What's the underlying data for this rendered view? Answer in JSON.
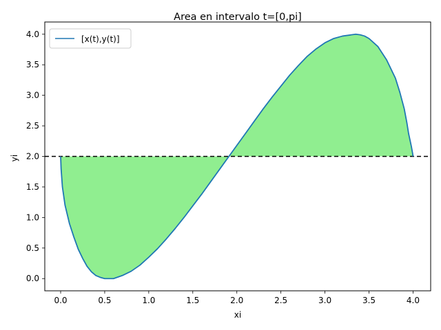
{
  "chart_data": {
    "type": "area",
    "title": "Area en intervalo t=[0,pi]",
    "xlabel": "xi",
    "ylabel": "yi",
    "xlim": [
      -0.18,
      4.2
    ],
    "ylim": [
      -0.2,
      4.2
    ],
    "xticks": [
      0.0,
      0.5,
      1.0,
      1.5,
      2.0,
      2.5,
      3.0,
      3.5,
      4.0
    ],
    "xtick_labels": [
      "0.0",
      "0.5",
      "1.0",
      "1.5",
      "2.0",
      "2.5",
      "3.0",
      "3.5",
      "4.0"
    ],
    "yticks": [
      0.0,
      0.5,
      1.0,
      1.5,
      2.0,
      2.5,
      3.0,
      3.5,
      4.0
    ],
    "ytick_labels": [
      "0.0",
      "0.5",
      "1.0",
      "1.5",
      "2.0",
      "2.5",
      "3.0",
      "3.5",
      "4.0"
    ],
    "grid": false,
    "legend_position": "top-left",
    "series": [
      {
        "name": "[x(t),y(t)]",
        "color": "#1f77b4",
        "x": [
          0.0,
          0.005,
          0.02,
          0.05,
          0.1,
          0.15,
          0.2,
          0.25,
          0.3,
          0.35,
          0.4,
          0.45,
          0.5,
          0.55,
          0.6,
          0.7,
          0.8,
          0.9,
          1.0,
          1.1,
          1.2,
          1.3,
          1.4,
          1.5,
          1.6,
          1.7,
          1.8,
          1.9,
          2.0,
          2.1,
          2.2,
          2.3,
          2.4,
          2.5,
          2.6,
          2.7,
          2.8,
          2.9,
          3.0,
          3.1,
          3.2,
          3.3,
          3.35,
          3.4,
          3.45,
          3.5,
          3.6,
          3.7,
          3.8,
          3.85,
          3.9,
          3.93,
          3.95,
          3.98,
          3.995,
          4.0
        ],
        "y": [
          2.0,
          1.8,
          1.5,
          1.2,
          0.9,
          0.68,
          0.48,
          0.33,
          0.2,
          0.11,
          0.05,
          0.02,
          0.0,
          0.0,
          0.0,
          0.05,
          0.12,
          0.22,
          0.35,
          0.49,
          0.65,
          0.82,
          1.0,
          1.19,
          1.38,
          1.58,
          1.78,
          1.98,
          2.18,
          2.38,
          2.58,
          2.78,
          2.97,
          3.15,
          3.33,
          3.49,
          3.64,
          3.76,
          3.86,
          3.93,
          3.97,
          3.99,
          4.0,
          3.99,
          3.97,
          3.93,
          3.8,
          3.58,
          3.28,
          3.05,
          2.78,
          2.55,
          2.37,
          2.17,
          2.05,
          2.0
        ]
      }
    ],
    "reference_line": {
      "y": 2.0,
      "style": "dashed",
      "color": "#000000"
    },
    "fill": {
      "between_y": 2.0,
      "color": "#90ee90"
    }
  }
}
